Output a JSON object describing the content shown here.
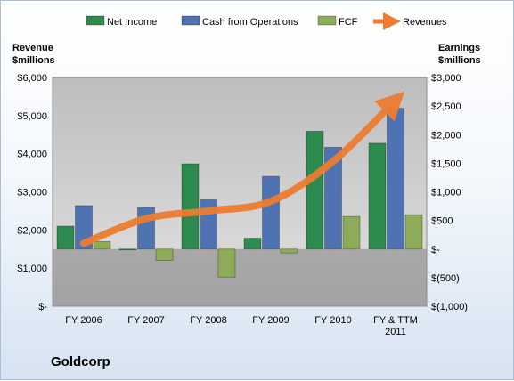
{
  "company": "Goldcorp",
  "colors": {
    "net_income": "#2e8b4f",
    "cash_from_operations": "#4f73b2",
    "fcf": "#8eab57",
    "revenues": "#ed7d31"
  },
  "chart_data": {
    "type": "bar",
    "categories": [
      "FY 2006",
      "FY 2007",
      "FY 2008",
      "FY 2009",
      "FY 2010",
      [
        "FY & TTM",
        "2011"
      ]
    ],
    "legend": [
      "Net Income",
      "Cash from Operations",
      "FCF",
      "Revenues"
    ],
    "legend_position": "top",
    "y_left": {
      "label": [
        "Revenue",
        "$millions"
      ],
      "min": 0,
      "max": 6000,
      "step": 1000,
      "tick_labels": [
        "$-",
        "$1,000",
        "$2,000",
        "$3,000",
        "$4,000",
        "$5,000",
        "$6,000"
      ]
    },
    "y_right": {
      "label": [
        "Earnings",
        "$millions"
      ],
      "min": -1000,
      "max": 3000,
      "step": 500,
      "tick_labels": [
        "$(1,000)",
        "$(500)",
        "$-",
        "$500",
        "$1,000",
        "$1,500",
        "$2,000",
        "$2,500",
        "$3,000"
      ]
    },
    "series": [
      {
        "name": "Net Income",
        "axis": "right",
        "type": "bar",
        "values": [
          400,
          0,
          1490,
          190,
          2060,
          1850
        ]
      },
      {
        "name": "Cash from Operations",
        "axis": "right",
        "type": "bar",
        "values": [
          760,
          730,
          860,
          1270,
          1780,
          2460
        ]
      },
      {
        "name": "FCF",
        "axis": "right",
        "type": "bar",
        "values": [
          130,
          -200,
          -490,
          -70,
          570,
          600
        ]
      },
      {
        "name": "Revenues",
        "axis": "left",
        "type": "line",
        "values": [
          1650,
          2300,
          2500,
          2750,
          3800,
          5400
        ]
      }
    ],
    "grid": false
  }
}
